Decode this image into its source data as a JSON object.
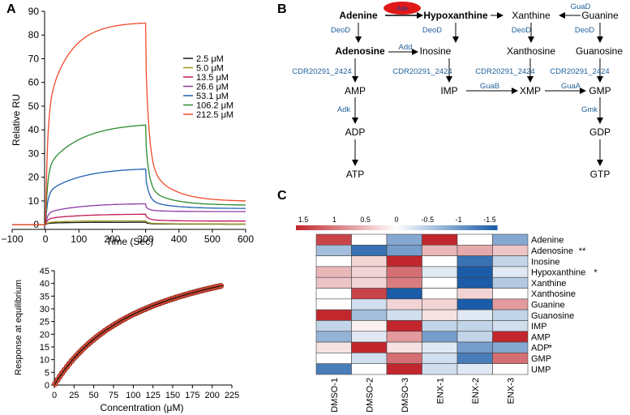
{
  "panels": {
    "a": "A",
    "b": "B",
    "c": "C"
  },
  "chart_data": [
    {
      "type": "line",
      "title": "",
      "xlabel": "Time (Sec)",
      "ylabel": "Relative RU",
      "xlim": [
        -100,
        600
      ],
      "ylim": [
        -2,
        90
      ],
      "xticks": [
        -100,
        0,
        100,
        200,
        300,
        400,
        500,
        600
      ],
      "yticks": [
        0,
        10,
        20,
        30,
        40,
        50,
        60,
        70,
        80,
        90
      ],
      "xtick_labels": [
        "−100",
        "0",
        "100",
        "200",
        "300",
        "400",
        "500",
        "600"
      ],
      "legend_position": "top-right",
      "series": [
        {
          "name": "2.5 μM",
          "color": "#1a1a1a",
          "plateau": 1.0,
          "end": 0.2,
          "k_on": 0.05
        },
        {
          "name": "5.0 μM",
          "color": "#9a9a20",
          "plateau": 1.6,
          "end": 0.3,
          "k_on": 0.05
        },
        {
          "name": "13.5 μM",
          "color": "#c2185b",
          "plateau": 4.5,
          "end": 1.5,
          "k_on": 0.03
        },
        {
          "name": "26.6 μM",
          "color": "#8e3aa5",
          "plateau": 9.0,
          "end": 5.5,
          "k_on": 0.03
        },
        {
          "name": "53.1 μM",
          "color": "#2060b0",
          "plateau": 24.0,
          "end": 6.8,
          "k_on": 0.03
        },
        {
          "name": "106.2 μM",
          "color": "#2e8b2e",
          "plateau": 43.0,
          "end": 8.2,
          "k_on": 0.03
        },
        {
          "name": "212.5 μM",
          "color": "#f04a2a",
          "plateau": 85.5,
          "end": 9.8,
          "k_on": 0.045
        }
      ]
    },
    {
      "type": "scatter",
      "title": "",
      "xlabel": "Concentration (μM)",
      "ylabel": "Response at equilibrium",
      "xlim": [
        0,
        225
      ],
      "ylim": [
        0,
        45
      ],
      "xticks": [
        0,
        25,
        50,
        75,
        100,
        125,
        150,
        175,
        200,
        225
      ],
      "yticks": [
        0,
        5,
        10,
        15,
        20,
        25,
        30,
        35,
        40,
        45
      ],
      "fit": {
        "Rmax": 61.2,
        "Kd": 120,
        "color": "#111111"
      },
      "marker_fill": "#e0503a",
      "marker_edge": "#7a1a10",
      "x_start": 1,
      "x_end": 213,
      "x_step": 3
    },
    {
      "type": "heatmap",
      "title": "",
      "rows": [
        "Adenine",
        "Adenosine",
        "Inosine",
        "Hypoxanthine",
        "Xanthine",
        "Xanthosine",
        "Guanine",
        "Guanosine",
        "IMP",
        "AMP",
        "ADP",
        "GMP",
        "UMP"
      ],
      "row_marks": [
        "",
        "**",
        "",
        "*",
        "",
        "",
        "",
        "",
        "",
        "",
        "*",
        "",
        ""
      ],
      "columns": [
        "DMSO-1",
        "DMSO-2",
        "DMSO-3",
        "ENX-1",
        "ENX-2",
        "ENX-3"
      ],
      "values": [
        [
          1.3,
          0.0,
          -0.8,
          1.5,
          0.0,
          -0.8
        ],
        [
          -0.6,
          -1.3,
          -0.9,
          0.5,
          0.6,
          0.4
        ],
        [
          0.0,
          0.3,
          1.5,
          0.0,
          -1.3,
          -0.4
        ],
        [
          0.5,
          0.3,
          1.0,
          -0.2,
          -1.5,
          -0.2
        ],
        [
          0.4,
          0.3,
          0.9,
          0.0,
          -1.5,
          -0.5
        ],
        [
          0.0,
          1.3,
          -1.5,
          0.0,
          0.3,
          0.0
        ],
        [
          0.0,
          -0.3,
          0.3,
          0.3,
          -1.5,
          0.7
        ],
        [
          1.5,
          -0.6,
          -0.3,
          0.2,
          -0.2,
          -0.4
        ],
        [
          -0.4,
          0.1,
          1.5,
          -0.4,
          -0.4,
          -0.3
        ],
        [
          -0.7,
          -0.2,
          0.7,
          -0.9,
          -0.4,
          1.5
        ],
        [
          0.2,
          1.5,
          0.2,
          -0.2,
          -0.9,
          -0.8
        ],
        [
          0.0,
          -0.3,
          1.0,
          -0.3,
          -1.2,
          1.0
        ],
        [
          -1.2,
          0.0,
          1.5,
          -0.3,
          -0.2,
          0.0
        ]
      ],
      "colorbar": {
        "ticks": [
          "1.5",
          "1",
          "0.5",
          "0",
          "-0.5",
          "-1",
          "-1.5"
        ],
        "high_color": "#c1272d",
        "mid_color": "#ffffff",
        "low_color": "#1a5ca8"
      }
    }
  ],
  "pathway": {
    "nodes": {
      "adenine": "Adenine",
      "hypoxanthine": "Hypoxanthine",
      "xanthine": "Xanthine",
      "guanine": "Guanine",
      "adenosine": "Adenosine",
      "inosine": "Inosine",
      "xanthosine": "Xanthosine",
      "guanosine": "Guanosine",
      "amp": "AMP",
      "imp": "IMP",
      "xmp": "XMP",
      "gmp": "GMP",
      "adp": "ADP",
      "gdp": "GDP",
      "atp": "ATP",
      "gtp": "GTP"
    },
    "enzymes": {
      "ade": "Ade",
      "guad": "GuaD",
      "deod_1": "DeoD",
      "deod_2": "DeoD",
      "deod_3": "DeoD",
      "deod_4": "DeoD",
      "add": "Add",
      "cdr_1": "CDR20291_2424",
      "cdr_2": "CDR20291_2424",
      "cdr_3": "CDR20291_2424",
      "cdr_4": "CDR20291_2424",
      "guab": "GuaB",
      "guaa": "GuaA",
      "adk": "Adk",
      "gmk": "Gmk"
    },
    "colors": {
      "enzyme": "#1f5f99",
      "highlight": "#e01818"
    }
  }
}
